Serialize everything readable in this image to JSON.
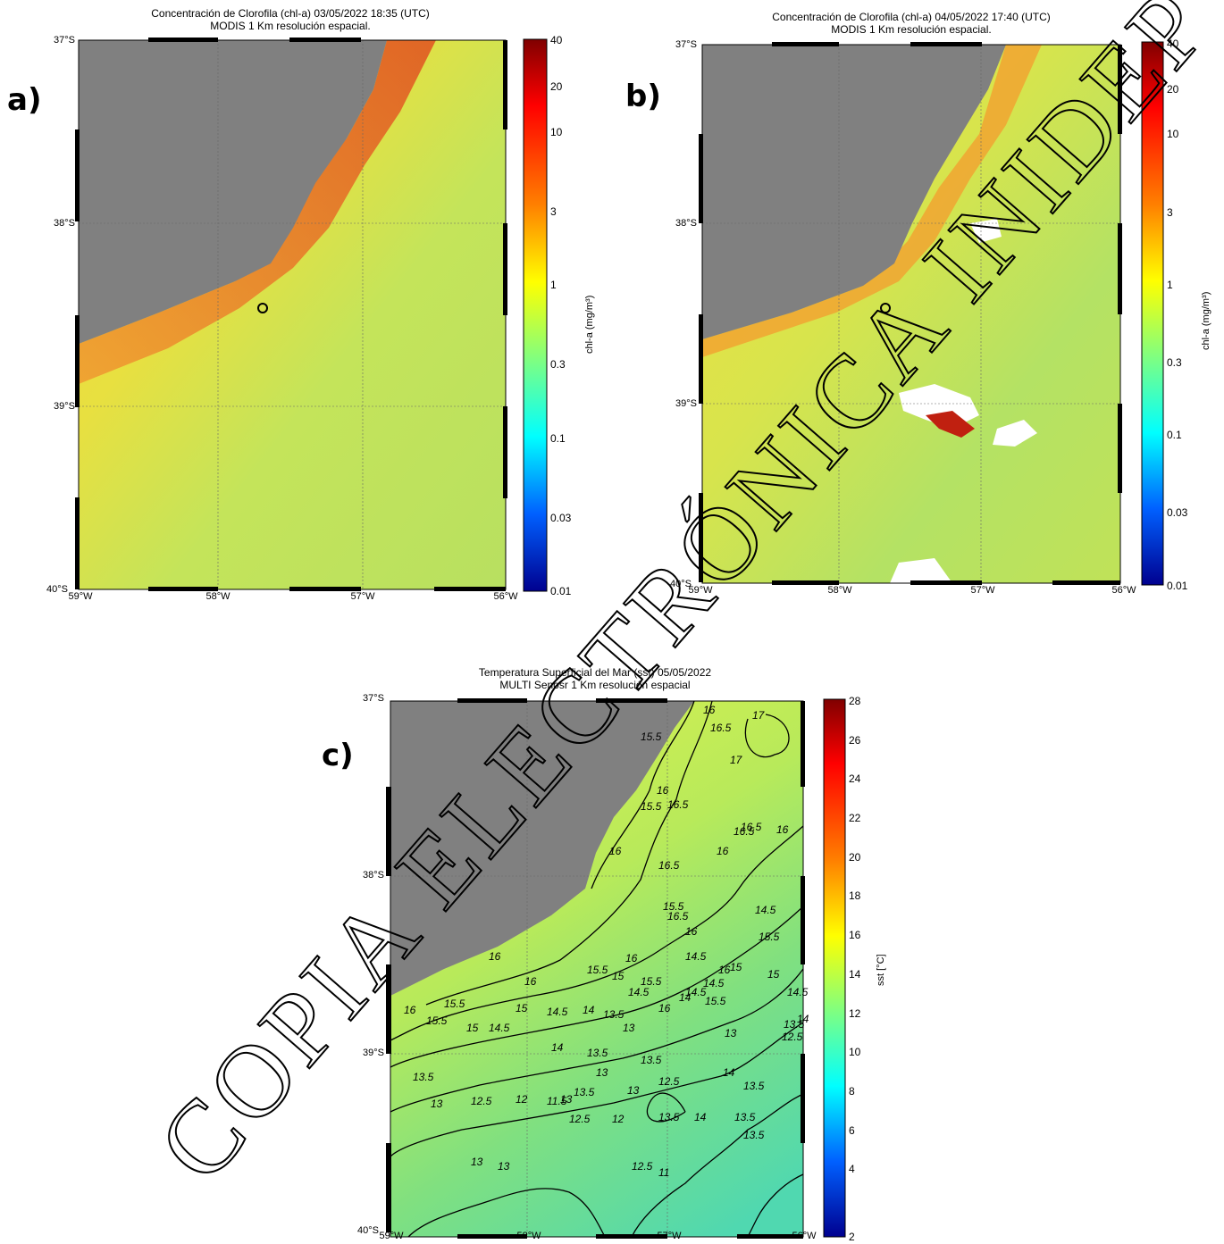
{
  "panels": [
    {
      "letter": "a)",
      "title_line1": "Concentración de Clorofila (chl-a)  03/05/2022 18:35 (UTC)",
      "title_line2": "MODIS  1 Km resolución espacial.",
      "lat_labels": [
        "37°S",
        "38°S",
        "39°S",
        "40°S"
      ],
      "lon_labels": [
        "59°W",
        "58°W",
        "57°W",
        "56°W"
      ],
      "colorbar_ticks": [
        "40",
        "20",
        "10",
        "3",
        "1",
        "0.3",
        "0.1",
        "0.03",
        "0.01"
      ],
      "colorbar_label": "chl-a (mg/m³)"
    },
    {
      "letter": "b)",
      "title_line1": "Concentración de Clorofila (chl-a)  04/05/2022 17:40 (UTC)",
      "title_line2": "MODIS  1 Km resolución espacial.",
      "lat_labels": [
        "37°S",
        "38°S",
        "39°S",
        "40°S"
      ],
      "lon_labels": [
        "59°W",
        "58°W",
        "57°W",
        "56°W"
      ],
      "colorbar_ticks": [
        "40",
        "20",
        "10",
        "3",
        "1",
        "0.3",
        "0.1",
        "0.03",
        "0.01"
      ],
      "colorbar_label": "chl-a (mg/m³)"
    },
    {
      "letter": "c)",
      "title_line1": "Temperatura Superficial del Mar (sst)  05/05/2022",
      "title_line2": "MULTI Senosr  1 Km resolución espacial",
      "lat_labels": [
        "37°S",
        "38°S",
        "39°S",
        "40°S"
      ],
      "lon_labels": [
        "59°W",
        "58°W",
        "57°W",
        "56°W"
      ],
      "colorbar_ticks": [
        "28",
        "26",
        "24",
        "22",
        "20",
        "18",
        "16",
        "14",
        "12",
        "10",
        "8",
        "6",
        "4",
        "2"
      ],
      "colorbar_label": "sst [°C]",
      "contour_labels": [
        "16",
        "16.5",
        "17",
        "17",
        "15.5",
        "16.5",
        "16",
        "16.5",
        "15.5",
        "16",
        "16.5",
        "16",
        "16.5",
        "16",
        "15.5",
        "14.5",
        "16.5",
        "16",
        "14.5",
        "16",
        "15.5",
        "14.5",
        "16",
        "15.5",
        "15",
        "14.5",
        "16",
        "15.5",
        "15",
        "14.5",
        "14",
        "13.5",
        "16",
        "16",
        "15.5",
        "15",
        "14.5",
        "14",
        "13",
        "12.5",
        "16",
        "15.5",
        "15",
        "14.5",
        "14",
        "13.5",
        "13",
        "15.5",
        "15",
        "14.5",
        "14",
        "13.5",
        "13.5",
        "13",
        "12.5",
        "14",
        "13.5",
        "13.5",
        "13",
        "12.5",
        "12",
        "11.5",
        "13.5",
        "13",
        "13.5",
        "13",
        "12.5",
        "12",
        "14",
        "13.5",
        "13.5",
        "13",
        "13",
        "12.5",
        "11"
      ]
    }
  ],
  "watermark": "COPIA ELECTRÓNICA INIDEP",
  "colors": {
    "land": "#808080",
    "ocean_chl_low": "#c8e650",
    "ocean_chl_high": "#f5a020",
    "ocean_sst": "#a8e070"
  }
}
